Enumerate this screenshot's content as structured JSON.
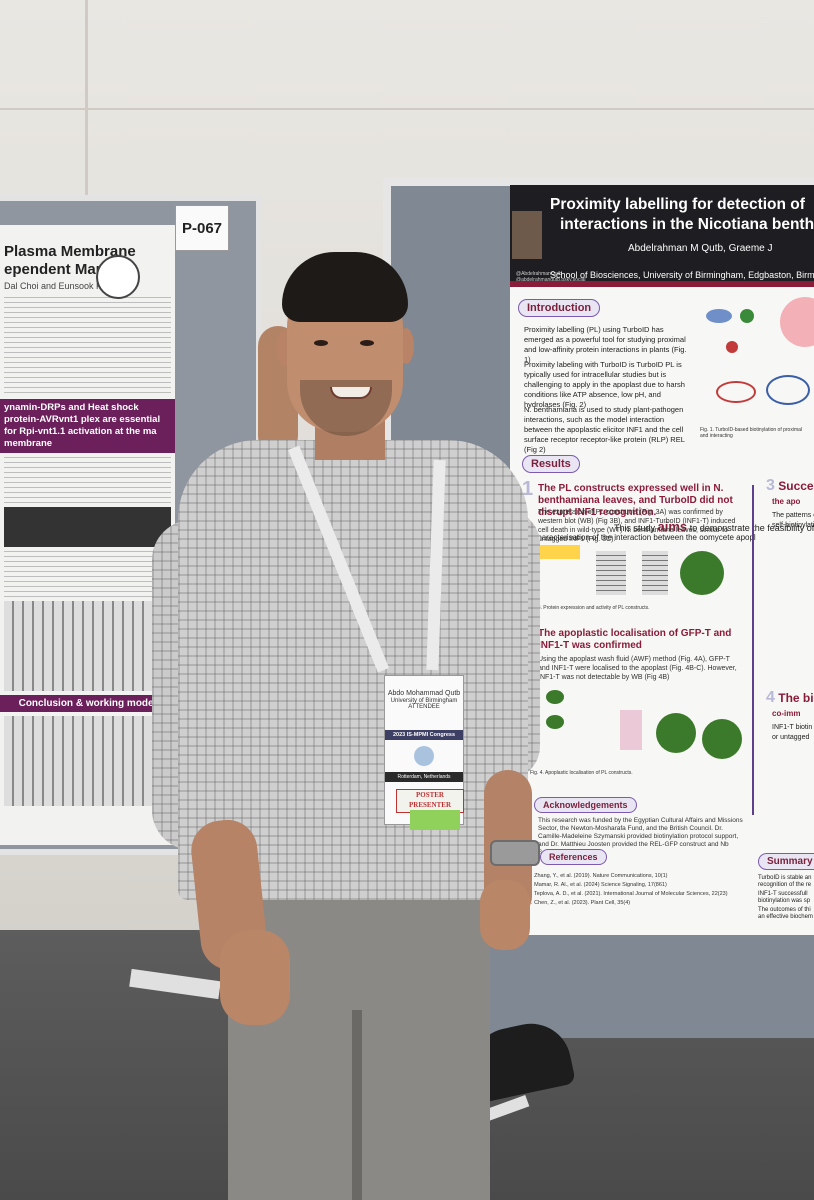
{
  "left_poster": {
    "title_line1": "Plasma Membrane",
    "title_line2": "ependent Manner",
    "authors": "Dal Choi and Eunsook Park",
    "section_heading": "ynamin-DRPs and Heat shock protein-AVRvnt1 plex are essential for Rpi-vnt1.1 activation at the ma membrane",
    "conclusion_heading": "Conclusion & working model",
    "poster_number": "P-067"
  },
  "right_poster": {
    "title_line1": "Proximity labelling for detection of",
    "title_line2": "interactions in the Nicotiana benth",
    "authors": "Abdelrahman M Qutb, Graeme J",
    "institution": "School of Biosciences, University of Birmingham, Edgbaston, Birmi",
    "handle1": "@AbdelrahmanQutb",
    "handle2": "@abdelrahmanqutb.bsky.social",
    "sections": {
      "introduction": "Introduction",
      "results": "Results",
      "acknowledgements": "Acknowledgements",
      "references": "References",
      "summary": "Summary"
    },
    "intro_bullets": [
      "Proximity labelling (PL) using TurboID has emerged as a powerful tool for studying proximal and low-affinity protein interactions in plants (Fig. 1)",
      "Proximity labeling with TurboID is TurboID PL is typically used for intracellular studies but is challenging to apply in the apoplast due to harsh conditions like ATP absence, low pH, and hydrolases (Fig. 2)",
      "N. benthamiana is used to study plant-pathogen interactions, such as the model interaction between the apoplastic elicitor INF1 and the cell surface receptor receptor-like protein (RLP) REL (Fig 2)"
    ],
    "aims_word": "aims",
    "aims_prefix": "This study",
    "aims_rest": "to demonstrate the feasibility of PL with Turb",
    "aims_line2": "the characterisation of the interaction between the oomycete apopl",
    "result1_heading": "The PL constructs expressed well in N. benthamiana leaves, and TurboID did not disrupt INF1 recognition.",
    "result1_body": "The expression of PL constructs (Fig. 3A) was confirmed by western blot (WB) (Fig 3B), and INF1-TurboID (INF1-T) induced cell death in wild-type (WT) N. benthamiana leaves, similar to untagged INF1 (Fig. 3C).",
    "result2_heading": "The apoplastic localisation of GFP-T and INF1-T was confirmed",
    "result2_body": "Using the apoplast wash fluid (AWF) method (Fig. 4A), GFP-T and INF1-T were localised to the apoplast (Fig. 4B-C). However, INF1-T was not detectable by WB (Fig 4B)",
    "fig1_caption": "Fig. 1. TurboID-based biotinylation of proximal and interacting",
    "fig3_caption": "Fig. 3. Protein expression and activity of PL constructs.",
    "fig4_caption": "Fig. 4. Apoplastic localisation of PL constructs.",
    "ack_text": "This research was funded by the Egyptian Cultural Affairs and Missions Sector, the Newton-Mosharafa Fund, and the British Council. Dr. Camille-Madeleine Szymanski provided biotinylation protocol support, and Dr. Matthieu Joosten provided the REL-GFP construct and Nb Sobir1 mutant.",
    "references": [
      "1. Zhang, Y., et al. (2019). Nature Communications, 10(1)",
      "2. Mamar, R. Al., et al. (2024) Science Signaling, 17(861)",
      "3. Teplova, A. D., et al. (2021). International Journal of Molecular Sciences, 22(23)",
      "4. Chen, Z., et al. (2023). Plant Cell, 35(4)"
    ],
    "result3_num": "3",
    "result3_text_a": "Success",
    "result3_text_b": "the apo",
    "result3_body_a": "The patterns o",
    "result3_body_b": "self-biotinylati",
    "result4_num": "4",
    "result4_text_a": "The biot",
    "result4_text_b": "co-imm",
    "result4_body_a": "INF1-T biotin",
    "result4_body_b": "or untagged",
    "summary_items": [
      "TurboID is stable an recognition of the re",
      "INF1-T successfull biotinylation was sp",
      "The outcomes of thi an effective biochem"
    ]
  },
  "badge": {
    "name": "Abdo Mohammad Qutb",
    "org": "University of Birmingham",
    "role": "ATTENDEE",
    "event": "2023 IS-MPMI Congress",
    "location": "Rotterdam, Netherlands",
    "ribbon": "POSTER PRESENTER"
  }
}
